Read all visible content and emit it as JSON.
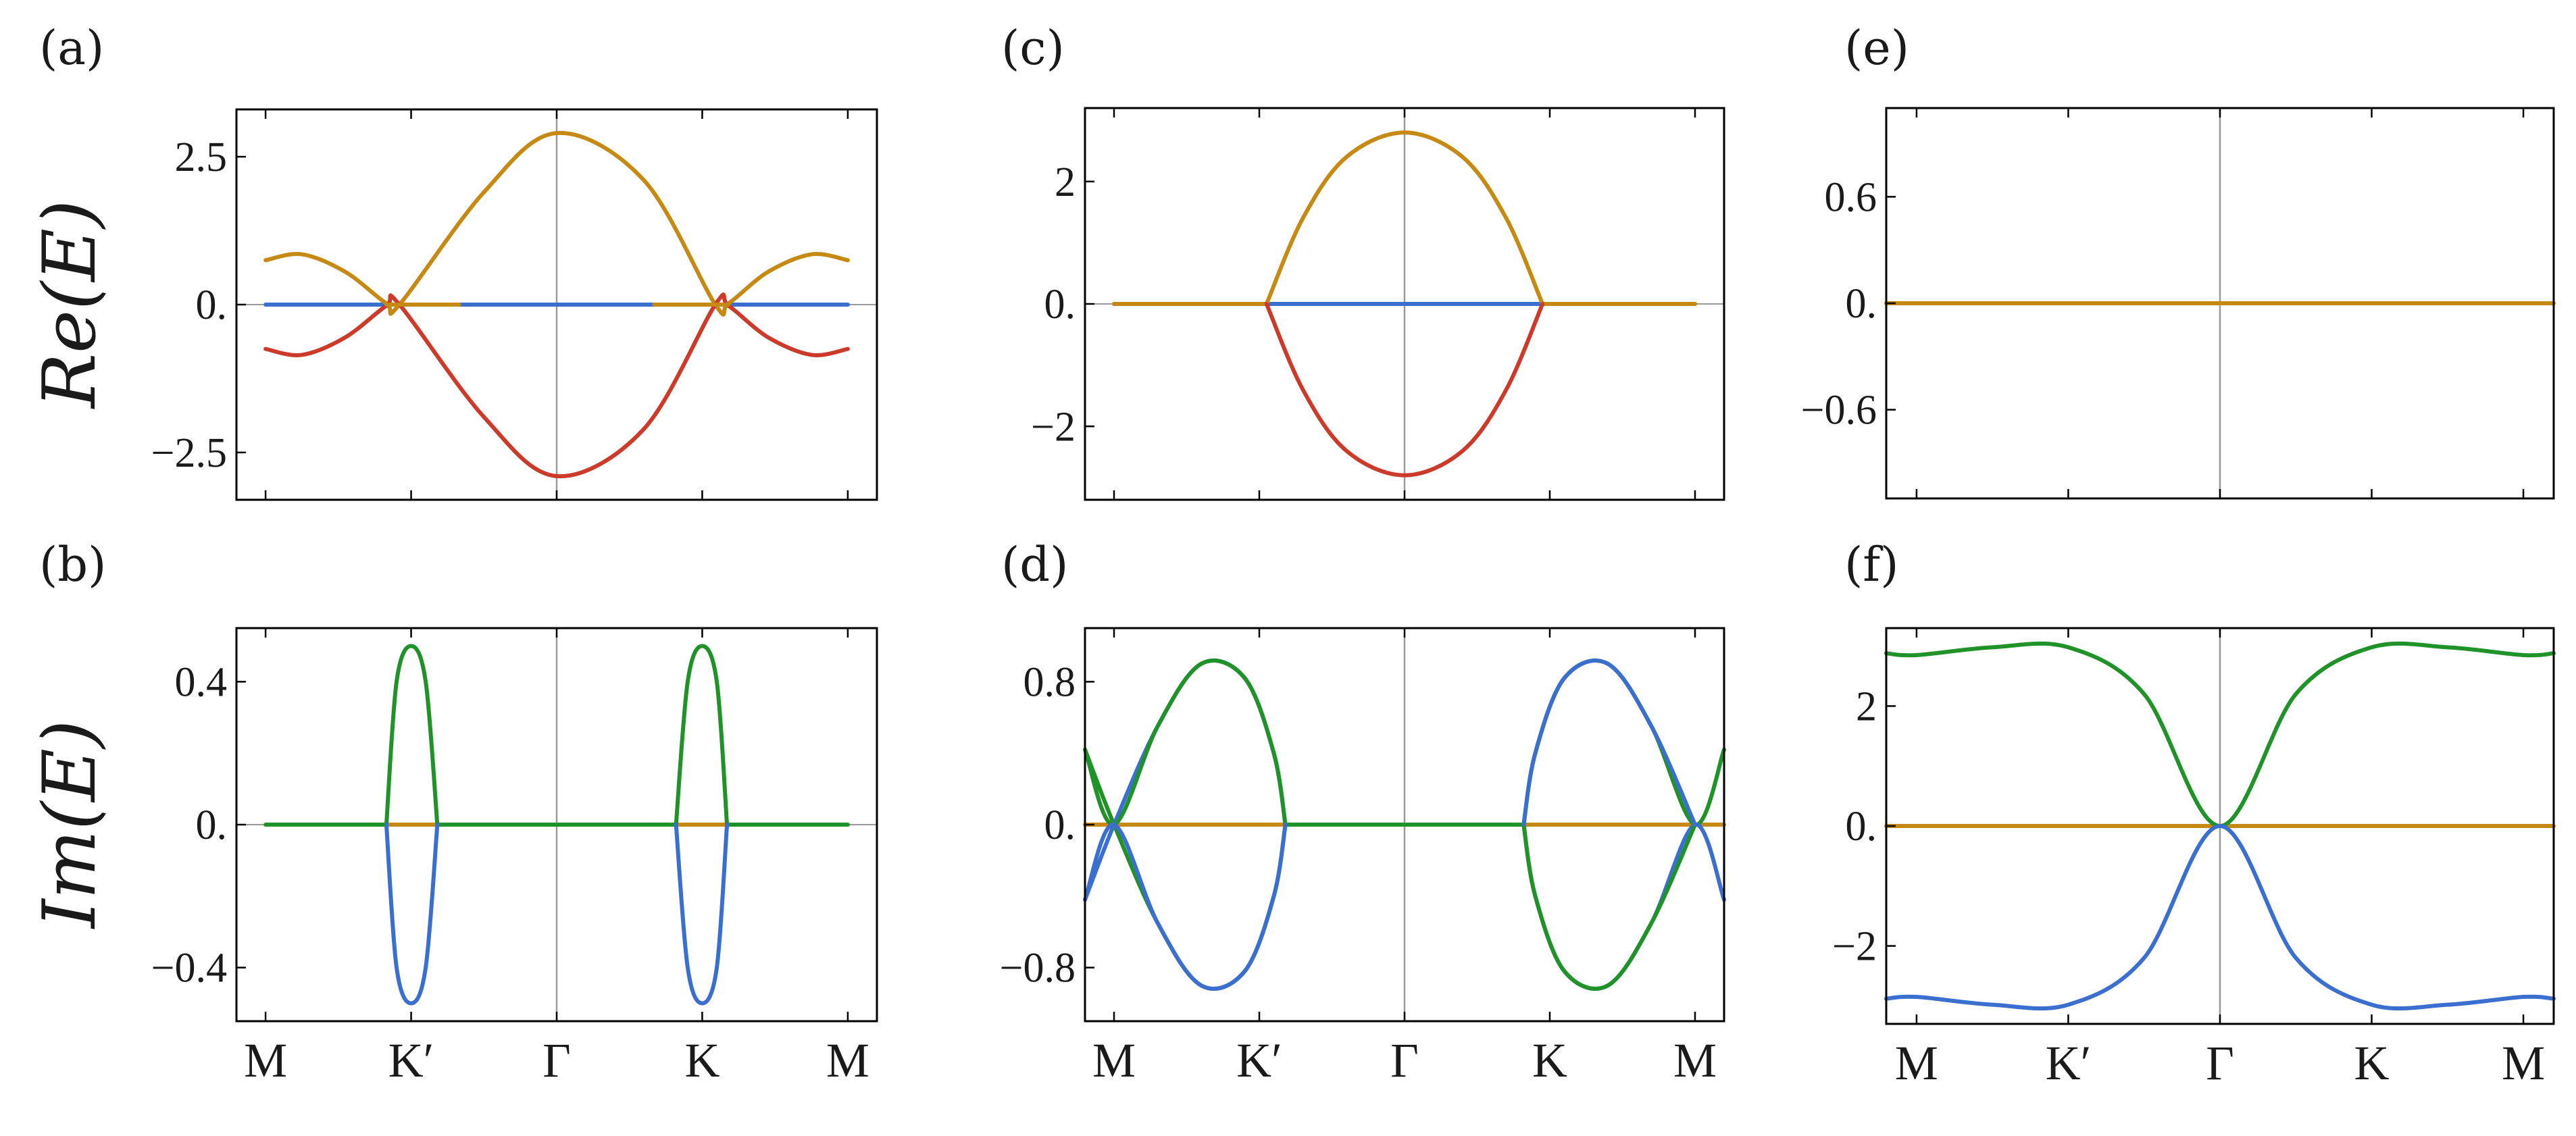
{
  "row_labels": {
    "top": "Re(E)",
    "bottom": "Im(E)"
  },
  "colors": {
    "blue": "#3a6fd0",
    "orange": "#c68a12",
    "red": "#cc3a2a",
    "green": "#1f9228",
    "axis": "#000000",
    "gridline": "#9a9a9a"
  },
  "chart_data": [
    {
      "panel": "(a)",
      "type": "line",
      "quantity": "Re(E)",
      "xticks": [
        "",
        "",
        "",
        "",
        ""
      ],
      "ylim": [
        -3.3,
        3.3
      ],
      "yticks": [
        {
          "v": 2.5,
          "label": "2.5"
        },
        {
          "v": 0,
          "label": "0."
        },
        {
          "v": -2.5,
          "label": "−2.5"
        }
      ],
      "series": [
        {
          "color": "blue",
          "x": [
            0.0,
            1.0,
            2.0,
            3.0,
            4.0
          ],
          "y": [
            0,
            0,
            0,
            0,
            0
          ]
        },
        {
          "color": "orange",
          "x": [
            0.0,
            0.25,
            0.55,
            0.83,
            0.92,
            1.5,
            2.0,
            2.6,
            3.09,
            3.18,
            3.45,
            3.75,
            4.0
          ],
          "y": [
            0.75,
            0.85,
            0.55,
            0.02,
            0.0,
            1.9,
            2.9,
            2.1,
            0.0,
            0.02,
            0.55,
            0.85,
            0.75
          ]
        },
        {
          "color": "red",
          "x": [
            0.0,
            0.25,
            0.55,
            0.83,
            0.92,
            1.5,
            2.0,
            2.6,
            3.09,
            3.18,
            3.45,
            3.75,
            4.0
          ],
          "y": [
            -0.75,
            -0.85,
            -0.55,
            -0.02,
            0.0,
            -1.9,
            -2.9,
            -2.1,
            0.0,
            -0.02,
            -0.55,
            -0.85,
            -0.75
          ]
        },
        {
          "color": "orange",
          "x": [
            0.83,
            1.33
          ],
          "y": [
            0,
            0
          ]
        },
        {
          "color": "orange",
          "x": [
            2.67,
            3.18
          ],
          "y": [
            0,
            0
          ]
        }
      ]
    },
    {
      "panel": "(b)",
      "type": "line",
      "quantity": "Im(E)",
      "xticks": [
        "M",
        "K′",
        "Γ",
        "K",
        "M"
      ],
      "ylim": [
        -0.55,
        0.55
      ],
      "yticks": [
        {
          "v": 0.4,
          "label": "0.4"
        },
        {
          "v": 0,
          "label": "0."
        },
        {
          "v": -0.4,
          "label": "−0.4"
        }
      ],
      "series": [
        {
          "color": "green",
          "x": [
            0.0,
            4.0
          ],
          "y": [
            0,
            0
          ]
        },
        {
          "color": "orange",
          "x": [
            0.83,
            1.18
          ],
          "y": [
            0,
            0
          ]
        },
        {
          "color": "orange",
          "x": [
            2.82,
            3.17
          ],
          "y": [
            0,
            0
          ]
        },
        {
          "color": "green",
          "x": [
            0.83,
            0.9,
            1.0,
            1.1,
            1.18
          ],
          "y": [
            0.0,
            0.4,
            0.5,
            0.4,
            0.0
          ]
        },
        {
          "color": "blue",
          "x": [
            0.83,
            0.9,
            1.0,
            1.1,
            1.18
          ],
          "y": [
            0.0,
            -0.4,
            -0.5,
            -0.4,
            0.0
          ]
        },
        {
          "color": "green",
          "x": [
            2.82,
            2.9,
            3.0,
            3.1,
            3.17
          ],
          "y": [
            0.0,
            0.4,
            0.5,
            0.4,
            0.0
          ]
        },
        {
          "color": "blue",
          "x": [
            2.82,
            2.9,
            3.0,
            3.1,
            3.17
          ],
          "y": [
            0.0,
            -0.4,
            -0.5,
            -0.4,
            0.0
          ]
        }
      ]
    },
    {
      "panel": "(c)",
      "type": "line",
      "quantity": "Re(E)",
      "xticks": [
        "",
        "",
        "",
        "",
        ""
      ],
      "ylim": [
        -3.2,
        3.2
      ],
      "yticks": [
        {
          "v": 2,
          "label": "2"
        },
        {
          "v": 0,
          "label": "0."
        },
        {
          "v": -2,
          "label": "−2"
        }
      ],
      "series": [
        {
          "color": "blue",
          "x": [
            0.0,
            4.0
          ],
          "y": [
            0,
            0
          ]
        },
        {
          "color": "orange",
          "x": [
            0.0,
            1.05
          ],
          "y": [
            0,
            0
          ]
        },
        {
          "color": "orange",
          "x": [
            2.95,
            4.0
          ],
          "y": [
            0,
            0
          ]
        },
        {
          "color": "orange",
          "x": [
            1.05,
            1.3,
            1.6,
            2.0,
            2.4,
            2.7,
            2.95
          ],
          "y": [
            0.0,
            1.4,
            2.4,
            2.8,
            2.4,
            1.4,
            0.0
          ]
        },
        {
          "color": "red",
          "x": [
            1.05,
            1.3,
            1.6,
            2.0,
            2.4,
            2.7,
            2.95
          ],
          "y": [
            0.0,
            -1.4,
            -2.4,
            -2.8,
            -2.4,
            -1.4,
            0.0
          ]
        }
      ]
    },
    {
      "panel": "(d)",
      "type": "line",
      "quantity": "Im(E)",
      "xticks": [
        "M",
        "K′",
        "Γ",
        "K",
        "M"
      ],
      "ylim": [
        -1.1,
        1.1
      ],
      "yticks": [
        {
          "v": 0.8,
          "label": "0.8"
        },
        {
          "v": 0,
          "label": "0."
        },
        {
          "v": -0.8,
          "label": "−0.8"
        }
      ],
      "series": [
        {
          "color": "orange",
          "x": [
            -0.2,
            4.2
          ],
          "y": [
            0,
            0
          ]
        },
        {
          "color": "green",
          "x": [
            1.18,
            2.82
          ],
          "y": [
            0,
            0
          ]
        },
        {
          "color": "green",
          "x": [
            -0.2,
            0.0,
            0.3,
            0.6,
            0.9,
            1.1,
            1.18
          ],
          "y": [
            0.42,
            0.0,
            -0.55,
            -0.9,
            -0.82,
            -0.4,
            0.0
          ]
        },
        {
          "color": "blue",
          "x": [
            -0.2,
            0.0,
            0.3,
            0.6,
            0.9,
            1.1,
            1.18
          ],
          "y": [
            -0.42,
            0.0,
            0.55,
            0.9,
            0.82,
            0.4,
            0.0
          ]
        },
        {
          "color": "green",
          "x": [
            -0.2,
            0.0,
            0.3,
            0.6,
            0.9,
            1.1,
            1.18
          ],
          "y": [
            0.42,
            0.0,
            0.55,
            0.9,
            0.82,
            0.4,
            0.0
          ]
        },
        {
          "color": "blue",
          "x": [
            -0.2,
            0.0,
            0.3,
            0.6,
            0.9,
            1.1,
            1.18
          ],
          "y": [
            -0.42,
            0.0,
            -0.55,
            -0.9,
            -0.82,
            -0.4,
            0.0
          ]
        },
        {
          "color": "green",
          "x": [
            2.82,
            2.9,
            3.1,
            3.4,
            3.7,
            4.0,
            4.2
          ],
          "y": [
            0.0,
            0.4,
            0.82,
            0.9,
            0.55,
            0.0,
            0.42
          ]
        },
        {
          "color": "blue",
          "x": [
            2.82,
            2.9,
            3.1,
            3.4,
            3.7,
            4.0,
            4.2
          ],
          "y": [
            0.0,
            -0.4,
            -0.82,
            -0.9,
            -0.55,
            0.0,
            -0.42
          ]
        },
        {
          "color": "green",
          "x": [
            2.82,
            2.9,
            3.1,
            3.4,
            3.7,
            4.0
          ],
          "y": [
            0.0,
            -0.4,
            -0.82,
            -0.9,
            -0.55,
            0.0
          ]
        },
        {
          "color": "blue",
          "x": [
            2.82,
            2.9,
            3.1,
            3.4,
            3.7,
            4.0
          ],
          "y": [
            0.0,
            0.4,
            0.82,
            0.9,
            0.55,
            0.0
          ]
        }
      ]
    },
    {
      "panel": "(e)",
      "type": "line",
      "quantity": "Re(E)",
      "xticks": [
        "",
        "",
        "",
        "",
        ""
      ],
      "ylim": [
        -1.1,
        1.1
      ],
      "yticks": [
        {
          "v": 0.6,
          "label": "0.6"
        },
        {
          "v": 0,
          "label": "0."
        },
        {
          "v": -0.6,
          "label": "−0.6"
        }
      ],
      "series": [
        {
          "color": "blue",
          "x": [
            -0.2,
            4.2
          ],
          "y": [
            0,
            0
          ]
        },
        {
          "color": "orange",
          "x": [
            -0.2,
            4.2
          ],
          "y": [
            0,
            0
          ]
        }
      ]
    },
    {
      "panel": "(f)",
      "type": "line",
      "quantity": "Im(E)",
      "xticks": [
        "M",
        "K′",
        "Γ",
        "K",
        "M"
      ],
      "ylim": [
        -3.3,
        3.3
      ],
      "yticks": [
        {
          "v": 2,
          "label": "2"
        },
        {
          "v": 0,
          "label": "0."
        },
        {
          "v": -2,
          "label": "−2"
        }
      ],
      "series": [
        {
          "color": "orange",
          "x": [
            -0.2,
            4.2
          ],
          "y": [
            0,
            0
          ]
        },
        {
          "color": "green",
          "x": [
            -0.2,
            0.0,
            0.5,
            1.0,
            1.5,
            2.0,
            2.5,
            3.0,
            3.5,
            4.0,
            4.2
          ],
          "y": [
            2.88,
            2.85,
            2.98,
            2.98,
            2.2,
            0.0,
            2.2,
            2.98,
            2.98,
            2.85,
            2.88
          ]
        },
        {
          "color": "blue",
          "x": [
            -0.2,
            0.0,
            0.5,
            1.0,
            1.5,
            2.0,
            2.5,
            3.0,
            3.5,
            4.0,
            4.2
          ],
          "y": [
            -2.88,
            -2.85,
            -2.98,
            -2.98,
            -2.2,
            0.0,
            -2.2,
            -2.98,
            -2.98,
            -2.85,
            -2.88
          ]
        }
      ]
    }
  ]
}
